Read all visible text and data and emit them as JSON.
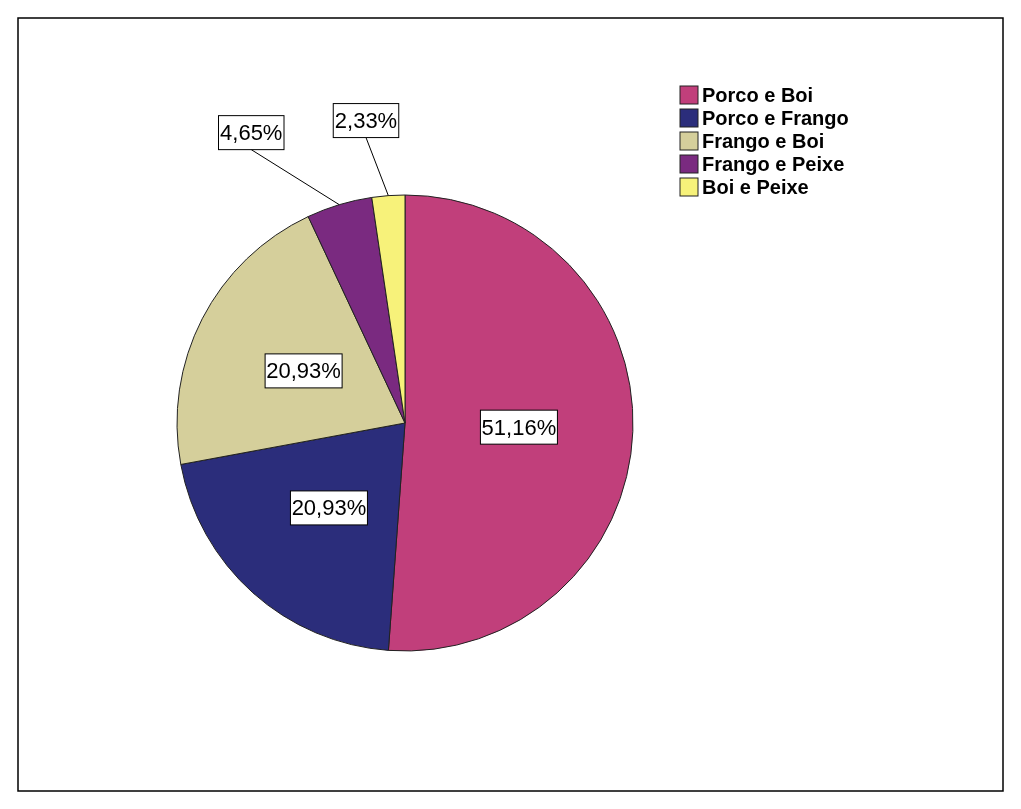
{
  "chart_data": {
    "type": "pie",
    "categories": [
      "Porco e Boi",
      "Porco e Frango",
      "Frango e Boi",
      "Frango e Peixe",
      "Boi e Peixe"
    ],
    "values": [
      51.16,
      20.93,
      20.93,
      4.65,
      2.33
    ],
    "colors": [
      "#c13f7b",
      "#2b2d7b",
      "#d5cf9b",
      "#7a2a80",
      "#f7f27a"
    ],
    "value_labels": [
      "51,16%",
      "20,93%",
      "20,93%",
      "4,65%",
      "2,33%"
    ],
    "legend": "top right"
  }
}
